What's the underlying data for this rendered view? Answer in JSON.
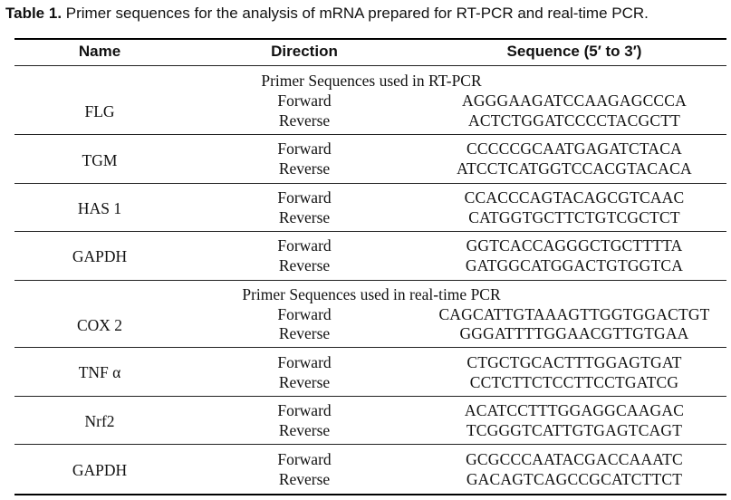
{
  "caption": {
    "label": "Table 1.",
    "text": " Primer sequences for the analysis of mRNA prepared for RT-PCR and real-time PCR."
  },
  "headers": {
    "name": "Name",
    "direction": "Direction",
    "sequence": "Sequence (5′ to 3′)"
  },
  "sections": [
    {
      "title": "Primer Sequences used in RT-PCR",
      "rows": [
        {
          "name": "FLG",
          "directions": [
            "Forward",
            "Reverse"
          ],
          "sequences": [
            "AGGGAAGATCCAAGAGCCCA",
            "ACTCTGGATCCCCTACGCTT"
          ]
        },
        {
          "name": "TGM",
          "directions": [
            "Forward",
            "Reverse"
          ],
          "sequences": [
            "CCCCCGCAATGAGATCTACA",
            "ATCCTCATGGTCCACGTACACA"
          ]
        },
        {
          "name": "HAS 1",
          "directions": [
            "Forward",
            "Reverse"
          ],
          "sequences": [
            "CCACCCAGTACAGCGTCAAC",
            "CATGGTGCTTCTGTCGCTCT"
          ]
        },
        {
          "name": "GAPDH",
          "directions": [
            "Forward",
            "Reverse"
          ],
          "sequences": [
            "GGTCACCAGGGCTGCTTTTA",
            "GATGGCATGGACTGTGGTCA"
          ]
        }
      ]
    },
    {
      "title": "Primer Sequences used in real-time PCR",
      "rows": [
        {
          "name": "COX 2",
          "directions": [
            "Forward",
            "Reverse"
          ],
          "sequences": [
            "CAGCATTGTAAAGTTGGTGGACTGT",
            "GGGATTTTGGAACGTTGTGAA"
          ]
        },
        {
          "name": "TNF α",
          "directions": [
            "Forward",
            "Reverse"
          ],
          "sequences": [
            "CTGCTGCACTTTGGAGTGAT",
            "CCTCTTCTCCTTCCTGATCG"
          ]
        },
        {
          "name": "Nrf2",
          "directions": [
            "Forward",
            "Reverse"
          ],
          "sequences": [
            "ACATCCTTTGGAGGCAAGAC",
            "TCGGGTCATTGTGAGTCAGT"
          ]
        },
        {
          "name": "GAPDH",
          "directions": [
            "Forward",
            "Reverse"
          ],
          "sequences": [
            "GCGCCCAATACGACCAAATC",
            "GACAGTCAGCCGCATCTTCT"
          ]
        }
      ]
    }
  ]
}
